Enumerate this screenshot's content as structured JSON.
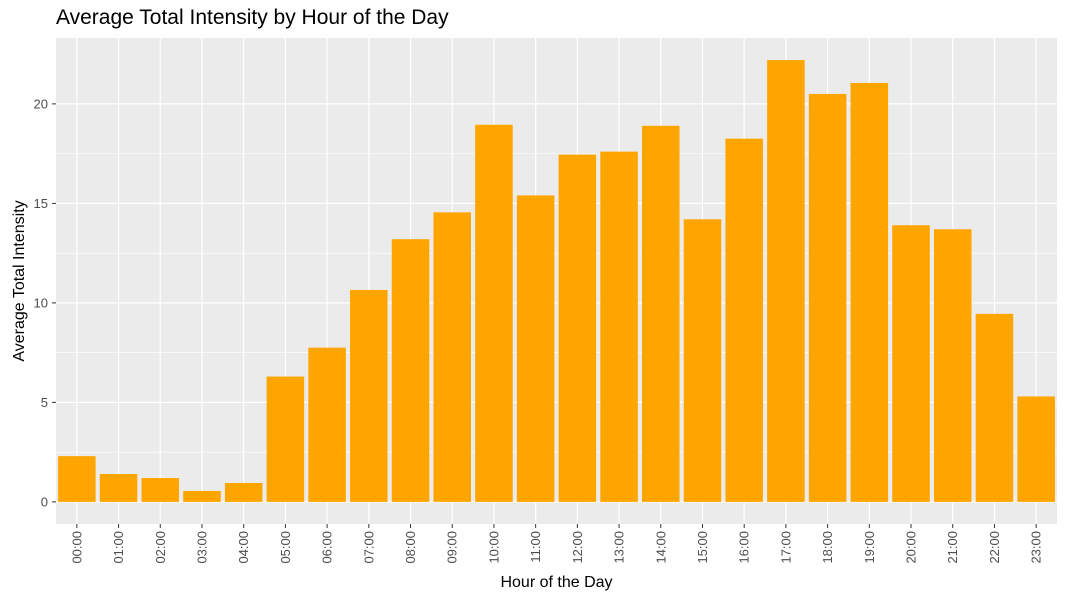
{
  "chart_data": {
    "type": "bar",
    "title": "Average Total Intensity by Hour of the Day",
    "xlabel": "Hour of the Day",
    "ylabel": "Average Total Intensity",
    "categories": [
      "00:00",
      "01:00",
      "02:00",
      "03:00",
      "04:00",
      "05:00",
      "06:00",
      "07:00",
      "08:00",
      "09:00",
      "10:00",
      "11:00",
      "12:00",
      "13:00",
      "14:00",
      "15:00",
      "16:00",
      "17:00",
      "18:00",
      "19:00",
      "20:00",
      "21:00",
      "22:00",
      "23:00"
    ],
    "values": [
      2.3,
      1.4,
      1.2,
      0.55,
      0.95,
      6.3,
      7.75,
      10.65,
      13.2,
      14.55,
      18.95,
      15.4,
      17.45,
      17.6,
      18.9,
      14.2,
      18.25,
      22.2,
      20.5,
      21.05,
      13.9,
      13.7,
      9.45,
      5.3
    ],
    "ylim": [
      -1.11,
      23.31
    ],
    "yticks": [
      0,
      5,
      10,
      15,
      20
    ],
    "bar_color": "#FFA500",
    "panel_color": "#EBEBEB",
    "grid": true,
    "legend": "none"
  }
}
